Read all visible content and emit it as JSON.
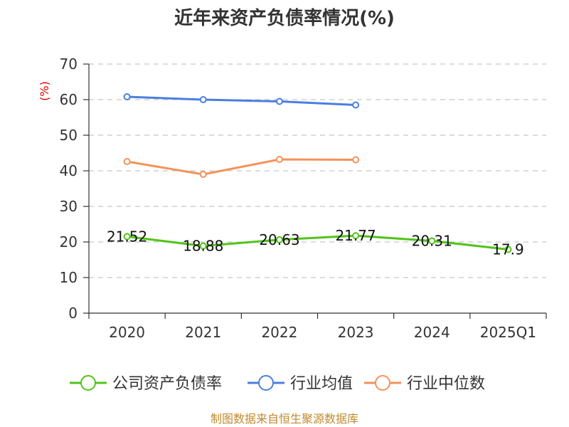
{
  "chart_data": {
    "type": "line",
    "title": "近年来资产负债率情况(%)",
    "ylabel": "(%)",
    "xlabel": "",
    "categories": [
      "2020",
      "2021",
      "2022",
      "2023",
      "2024",
      "2025Q1"
    ],
    "ylim": [
      0,
      70
    ],
    "yticks": [
      0,
      10,
      20,
      30,
      40,
      50,
      60,
      70
    ],
    "grid": true,
    "legend_position": "bottom",
    "series": [
      {
        "name": "公司资产负债率",
        "color": "#52c41a",
        "values": [
          21.52,
          18.88,
          20.63,
          21.77,
          20.31,
          17.9
        ],
        "labels": [
          "21.52",
          "18.88",
          "20.63",
          "21.77",
          "20.31",
          "17.9"
        ],
        "show_labels": true
      },
      {
        "name": "行业均值",
        "color": "#4a7fe0",
        "values": [
          60.8,
          60.0,
          59.5,
          58.5,
          null,
          null
        ],
        "show_labels": false
      },
      {
        "name": "行业中位数",
        "color": "#f4925a",
        "values": [
          42.6,
          39.0,
          43.2,
          43.1,
          null,
          null
        ],
        "show_labels": false
      }
    ],
    "source": "制图数据来自恒生聚源数据库"
  }
}
